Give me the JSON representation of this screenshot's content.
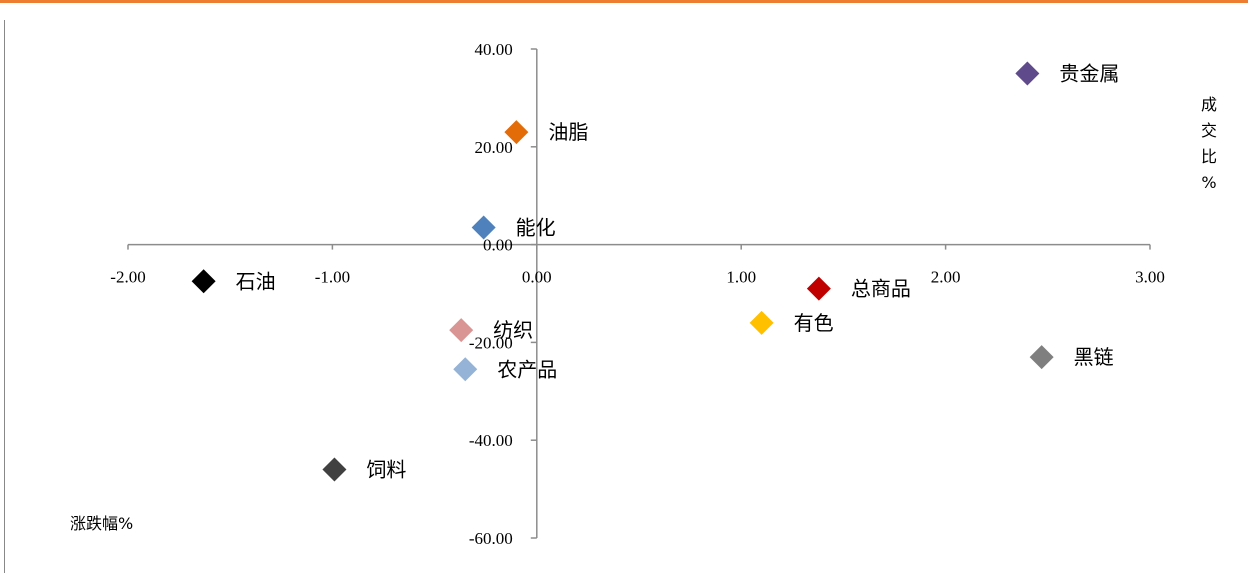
{
  "chart_data": {
    "type": "scatter",
    "title": "",
    "xlabel": "涨跌幅%",
    "ylabel_chars": [
      "成",
      "交",
      "比",
      "%"
    ],
    "xlim": [
      -2,
      3
    ],
    "ylim": [
      -60,
      40
    ],
    "x_ticks": [
      "-2.00",
      "-1.00",
      "0.00",
      "1.00",
      "2.00",
      "3.00"
    ],
    "y_ticks": [
      "40.00",
      "20.00",
      "0.00",
      "-20.00",
      "-40.00",
      "-60.00"
    ],
    "grid": false,
    "points": [
      {
        "label": "贵金属",
        "x": 2.4,
        "y": 35.0,
        "color": "#5F4B8B"
      },
      {
        "label": "油脂",
        "x": -0.1,
        "y": 23.0,
        "color": "#E36C09"
      },
      {
        "label": "能化",
        "x": -0.26,
        "y": 3.5,
        "color": "#4F81BD"
      },
      {
        "label": "石油",
        "x": -1.63,
        "y": -7.5,
        "color": "#000000"
      },
      {
        "label": "总商品",
        "x": 1.38,
        "y": -9.0,
        "color": "#C00000"
      },
      {
        "label": "有色",
        "x": 1.1,
        "y": -16.0,
        "color": "#FFC000"
      },
      {
        "label": "纺织",
        "x": -0.37,
        "y": -17.5,
        "color": "#D99594"
      },
      {
        "label": "农产品",
        "x": -0.35,
        "y": -25.5,
        "color": "#95B3D7"
      },
      {
        "label": "黑链",
        "x": 2.47,
        "y": -23.0,
        "color": "#7F7F7F"
      },
      {
        "label": "饲料",
        "x": -0.99,
        "y": -46.0,
        "color": "#404040"
      }
    ]
  }
}
